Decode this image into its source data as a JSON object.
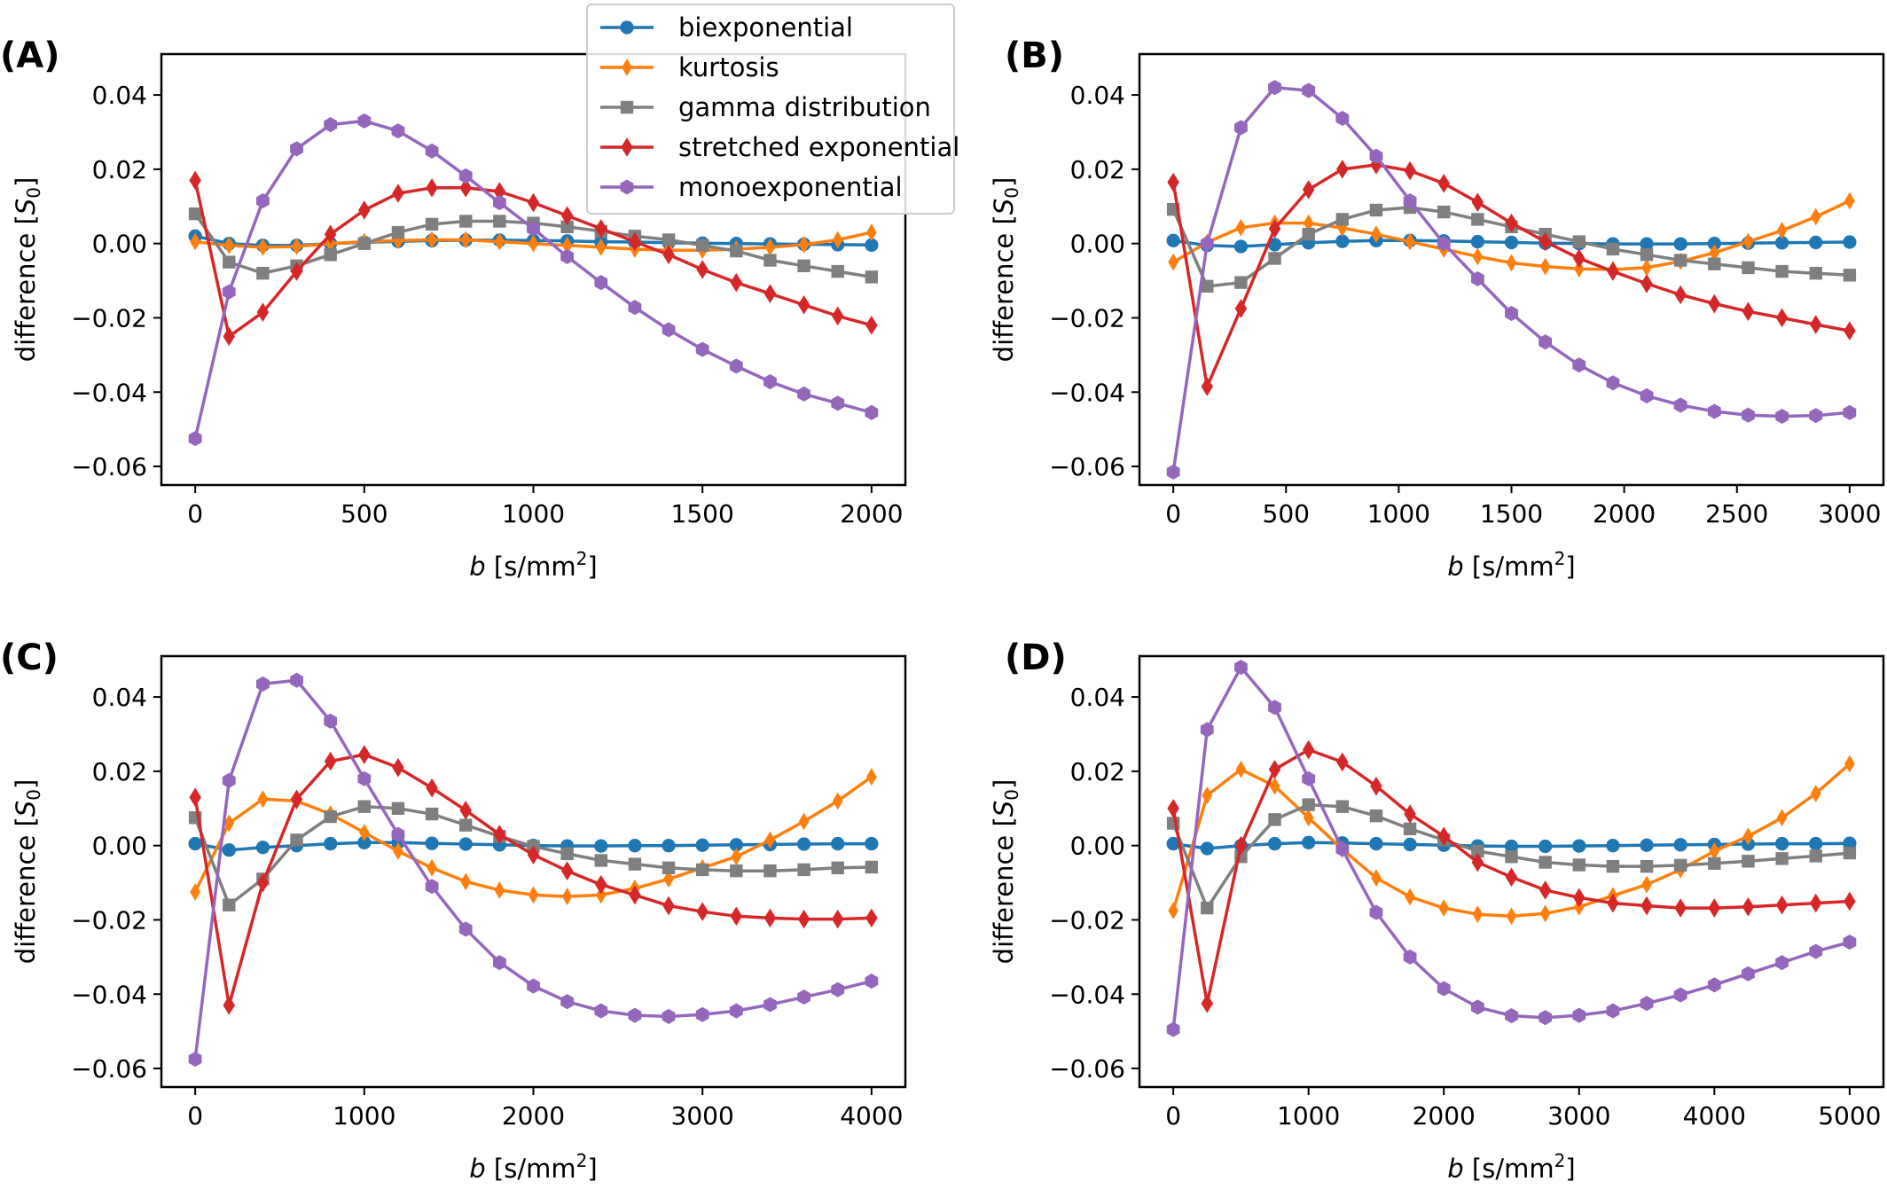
{
  "legend": [
    {
      "name": "biexponential",
      "color": "#1f77b4",
      "marker": "circle"
    },
    {
      "name": "kurtosis",
      "color": "#ff7f0e",
      "marker": "thin_diamond"
    },
    {
      "name": "gamma distribution",
      "color": "#7f7f7f",
      "marker": "square"
    },
    {
      "name": "stretched exponential",
      "color": "#d62728",
      "marker": "diamond"
    },
    {
      "name": "monoexponential",
      "color": "#9467bd",
      "marker": "hexagon"
    }
  ],
  "chart_data": [
    {
      "type": "line",
      "panel": "(A)",
      "ylabel": "difference [S0]",
      "xlabel": "b [s/mm2]",
      "xlim": [
        -100,
        2100
      ],
      "ylim": [
        -0.065,
        0.051
      ],
      "xticks": [
        0,
        500,
        1000,
        1500,
        2000
      ],
      "yticks": [
        0.04,
        0.02,
        0.0,
        -0.02,
        -0.04,
        -0.06
      ],
      "xtick_labels": [
        "0",
        "500",
        "1000",
        "1500",
        "2000"
      ],
      "ytick_labels": [
        "0.04",
        "0.02",
        "0.00",
        "−0.02",
        "−0.04",
        "−0.06"
      ],
      "x": [
        0,
        100,
        200,
        300,
        400,
        500,
        600,
        700,
        800,
        900,
        1000,
        1100,
        1200,
        1300,
        1400,
        1500,
        1600,
        1700,
        1800,
        1900,
        2000
      ],
      "series": [
        {
          "name": "biexponential",
          "values": [
            0.002,
            0.0,
            -0.0005,
            -0.0005,
            0.0,
            0.0003,
            0.0006,
            0.0008,
            0.0009,
            0.0009,
            0.0008,
            0.0007,
            0.0005,
            0.0004,
            0.0002,
            0.0001,
            0.0,
            -0.0001,
            -0.0002,
            -0.0003,
            -0.0004
          ]
        },
        {
          "name": "kurtosis",
          "values": [
            0.0005,
            -0.0005,
            -0.001,
            -0.0008,
            0.0,
            0.0005,
            0.0008,
            0.001,
            0.001,
            0.0005,
            0.0,
            -0.0005,
            -0.001,
            -0.0015,
            -0.0018,
            -0.0018,
            -0.0015,
            -0.001,
            -0.0003,
            0.001,
            0.003
          ]
        },
        {
          "name": "gamma distribution",
          "values": [
            0.008,
            -0.005,
            -0.008,
            -0.006,
            -0.003,
            0.0,
            0.003,
            0.0052,
            0.006,
            0.006,
            0.0055,
            0.0045,
            0.0033,
            0.002,
            0.001,
            -0.0005,
            -0.002,
            -0.0045,
            -0.006,
            -0.0075,
            -0.009
          ]
        },
        {
          "name": "stretched exponential",
          "values": [
            0.017,
            -0.025,
            -0.0185,
            -0.0075,
            0.0025,
            0.009,
            0.0135,
            0.015,
            0.015,
            0.014,
            0.011,
            0.0075,
            0.004,
            0.0005,
            -0.003,
            -0.007,
            -0.0105,
            -0.0135,
            -0.0165,
            -0.0195,
            -0.022
          ]
        },
        {
          "name": "monoexponential",
          "values": [
            -0.0525,
            -0.013,
            0.0115,
            0.0255,
            0.032,
            0.033,
            0.0303,
            0.0249,
            0.0182,
            0.011,
            0.004,
            -0.0035,
            -0.0105,
            -0.0172,
            -0.0232,
            -0.0285,
            -0.033,
            -0.0372,
            -0.0405,
            -0.043,
            -0.0455
          ]
        }
      ]
    },
    {
      "type": "line",
      "panel": "(B)",
      "ylabel": "difference [S0]",
      "xlabel": "b [s/mm2]",
      "xlim": [
        -150,
        3150
      ],
      "ylim": [
        -0.065,
        0.051
      ],
      "xticks": [
        0,
        500,
        1000,
        1500,
        2000,
        2500,
        3000
      ],
      "yticks": [
        0.04,
        0.02,
        0.0,
        -0.02,
        -0.04,
        -0.06
      ],
      "xtick_labels": [
        "0",
        "500",
        "1000",
        "1500",
        "2000",
        "2500",
        "3000"
      ],
      "ytick_labels": [
        "0.04",
        "0.02",
        "0.00",
        "−0.02",
        "−0.04",
        "−0.06"
      ],
      "x": [
        0,
        150,
        300,
        450,
        600,
        750,
        900,
        1050,
        1200,
        1350,
        1500,
        1650,
        1800,
        1950,
        2100,
        2250,
        2400,
        2550,
        2700,
        2850,
        3000
      ],
      "series": [
        {
          "name": "biexponential",
          "values": [
            0.0008,
            -0.0005,
            -0.0008,
            -0.0003,
            0.0002,
            0.0006,
            0.0008,
            0.0008,
            0.0007,
            0.0005,
            0.0003,
            0.0001,
            0.0,
            -0.0001,
            -0.0001,
            -0.0001,
            0.0,
            0.0001,
            0.0002,
            0.0003,
            0.0004
          ]
        },
        {
          "name": "kurtosis",
          "values": [
            -0.005,
            0.0003,
            0.0043,
            0.0055,
            0.0055,
            0.0042,
            0.0025,
            0.0005,
            -0.0015,
            -0.0035,
            -0.0052,
            -0.0062,
            -0.0068,
            -0.007,
            -0.0065,
            -0.0048,
            -0.0025,
            0.0005,
            0.0035,
            0.0072,
            0.0115
          ]
        },
        {
          "name": "gamma distribution",
          "values": [
            0.0092,
            -0.0115,
            -0.0105,
            -0.004,
            0.0025,
            0.0065,
            0.009,
            0.0097,
            0.0085,
            0.0065,
            0.0045,
            0.0025,
            0.0005,
            -0.0015,
            -0.003,
            -0.0045,
            -0.0055,
            -0.0065,
            -0.0075,
            -0.008,
            -0.0085
          ]
        },
        {
          "name": "stretched exponential",
          "values": [
            0.0165,
            -0.0385,
            -0.0175,
            0.004,
            0.0145,
            0.02,
            0.0212,
            0.0196,
            0.0162,
            0.0111,
            0.0055,
            0.0005,
            -0.004,
            -0.0075,
            -0.0108,
            -0.0138,
            -0.0162,
            -0.0183,
            -0.02,
            -0.0218,
            -0.0235
          ]
        },
        {
          "name": "monoexponential",
          "values": [
            -0.0615,
            0.0,
            0.0312,
            0.042,
            0.0412,
            0.0337,
            0.0235,
            0.0115,
            0.0,
            -0.0095,
            -0.0188,
            -0.0265,
            -0.0327,
            -0.0375,
            -0.041,
            -0.0435,
            -0.0452,
            -0.0462,
            -0.0465,
            -0.0463,
            -0.0455
          ]
        }
      ]
    },
    {
      "type": "line",
      "panel": "(C)",
      "ylabel": "difference [S0]",
      "xlabel": "b [s/mm2]",
      "xlim": [
        -200,
        4200
      ],
      "ylim": [
        -0.065,
        0.051
      ],
      "xticks": [
        0,
        1000,
        2000,
        3000,
        4000
      ],
      "yticks": [
        0.04,
        0.02,
        0.0,
        -0.02,
        -0.04,
        -0.06
      ],
      "xtick_labels": [
        "0",
        "1000",
        "2000",
        "3000",
        "4000"
      ],
      "ytick_labels": [
        "0.04",
        "0.02",
        "0.00",
        "−0.02",
        "−0.04",
        "−0.06"
      ],
      "x": [
        0,
        200,
        400,
        600,
        800,
        1000,
        1200,
        1400,
        1600,
        1800,
        2000,
        2200,
        2400,
        2600,
        2800,
        3000,
        3200,
        3400,
        3600,
        3800,
        4000
      ],
      "series": [
        {
          "name": "biexponential",
          "values": [
            0.0005,
            -0.0012,
            -0.0005,
            0.0,
            0.0005,
            0.0008,
            0.0008,
            0.0006,
            0.0004,
            0.0002,
            0.0,
            -0.0001,
            -0.0001,
            0.0,
            0.0,
            0.0001,
            0.0002,
            0.0003,
            0.0004,
            0.0005,
            0.0005
          ]
        },
        {
          "name": "kurtosis",
          "values": [
            -0.0125,
            0.006,
            0.0125,
            0.012,
            0.0085,
            0.0035,
            -0.0015,
            -0.006,
            -0.0097,
            -0.012,
            -0.0133,
            -0.0137,
            -0.0133,
            -0.0115,
            -0.009,
            -0.006,
            -0.003,
            0.0015,
            0.0065,
            0.012,
            0.0185
          ]
        },
        {
          "name": "gamma distribution",
          "values": [
            0.0075,
            -0.016,
            -0.009,
            0.0015,
            0.0078,
            0.0105,
            0.01,
            0.0085,
            0.0055,
            0.0025,
            -0.0002,
            -0.0022,
            -0.004,
            -0.005,
            -0.006,
            -0.0065,
            -0.0068,
            -0.0068,
            -0.0065,
            -0.006,
            -0.0058
          ]
        },
        {
          "name": "stretched exponential",
          "values": [
            0.013,
            -0.043,
            -0.01,
            0.0125,
            0.0227,
            0.0245,
            0.021,
            0.0155,
            0.0095,
            0.003,
            -0.0025,
            -0.0068,
            -0.0105,
            -0.0133,
            -0.0162,
            -0.0178,
            -0.019,
            -0.0195,
            -0.0198,
            -0.0198,
            -0.0195
          ]
        },
        {
          "name": "monoexponential",
          "values": [
            -0.0575,
            0.0175,
            0.0435,
            0.0445,
            0.0335,
            0.018,
            0.003,
            -0.011,
            -0.0225,
            -0.0315,
            -0.0378,
            -0.042,
            -0.0445,
            -0.0457,
            -0.046,
            -0.0455,
            -0.0445,
            -0.0428,
            -0.0408,
            -0.0388,
            -0.0365
          ]
        }
      ]
    },
    {
      "type": "line",
      "panel": "(D)",
      "ylabel": "difference [S0]",
      "xlabel": "b [s/mm2]",
      "xlim": [
        -250,
        5250
      ],
      "ylim": [
        -0.065,
        0.051
      ],
      "xticks": [
        0,
        1000,
        2000,
        3000,
        4000,
        5000
      ],
      "yticks": [
        0.04,
        0.02,
        0.0,
        -0.02,
        -0.04,
        -0.06
      ],
      "xtick_labels": [
        "0",
        "1000",
        "2000",
        "3000",
        "4000",
        "5000"
      ],
      "ytick_labels": [
        "0.04",
        "0.02",
        "0.00",
        "−0.02",
        "−0.04",
        "−0.06"
      ],
      "x": [
        0,
        250,
        500,
        750,
        1000,
        1250,
        1500,
        1750,
        2000,
        2250,
        2500,
        2750,
        3000,
        3250,
        3500,
        3750,
        4000,
        4250,
        4500,
        4750,
        5000
      ],
      "series": [
        {
          "name": "biexponential",
          "values": [
            0.0005,
            -0.0008,
            0.0,
            0.0005,
            0.0008,
            0.0007,
            0.0005,
            0.0003,
            0.0001,
            -0.0001,
            -0.0002,
            -0.0002,
            -0.0001,
            0.0,
            0.0001,
            0.0002,
            0.0003,
            0.0004,
            0.0005,
            0.0005,
            0.0006
          ]
        },
        {
          "name": "kurtosis",
          "values": [
            -0.0175,
            0.0135,
            0.0205,
            0.016,
            0.0075,
            -0.001,
            -0.0087,
            -0.0138,
            -0.0168,
            -0.0185,
            -0.019,
            -0.0183,
            -0.0165,
            -0.0135,
            -0.0105,
            -0.0065,
            -0.0015,
            0.0025,
            0.0075,
            0.014,
            0.022
          ]
        },
        {
          "name": "gamma distribution",
          "values": [
            0.006,
            -0.0168,
            -0.003,
            0.007,
            0.011,
            0.0105,
            0.008,
            0.0045,
            0.0015,
            -0.0015,
            -0.003,
            -0.0045,
            -0.0052,
            -0.0056,
            -0.0056,
            -0.0053,
            -0.0048,
            -0.0042,
            -0.0035,
            -0.0028,
            -0.002
          ]
        },
        {
          "name": "stretched exponential",
          "values": [
            0.01,
            -0.0425,
            0.0,
            0.0205,
            0.0258,
            0.0225,
            0.016,
            0.0085,
            0.0025,
            -0.0045,
            -0.0085,
            -0.012,
            -0.014,
            -0.0155,
            -0.0162,
            -0.0168,
            -0.0168,
            -0.0165,
            -0.016,
            -0.0155,
            -0.015
          ]
        },
        {
          "name": "monoexponential",
          "values": [
            -0.0495,
            0.0312,
            0.048,
            0.0372,
            0.018,
            -0.001,
            -0.018,
            -0.03,
            -0.0385,
            -0.0435,
            -0.0458,
            -0.0463,
            -0.0457,
            -0.0445,
            -0.0425,
            -0.0402,
            -0.0375,
            -0.0345,
            -0.0315,
            -0.0285,
            -0.026
          ]
        }
      ]
    }
  ]
}
